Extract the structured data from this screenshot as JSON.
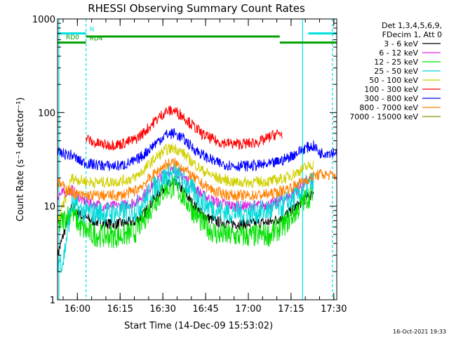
{
  "chart_data": {
    "type": "line",
    "title": "RHESSI Observing Summary Count Rates",
    "xlabel": "Start Time (14-Dec-09 15:53:02)",
    "ylabel": "Count Rate (s⁻¹ detector⁻¹)",
    "yscale": "log",
    "ylim": [
      1,
      1000
    ],
    "xlim_minutes": [
      0,
      98
    ],
    "x_ticks": [
      {
        "label": "16:00",
        "t": 6.97
      },
      {
        "label": "16:15",
        "t": 21.97
      },
      {
        "label": "16:30",
        "t": 36.97
      },
      {
        "label": "16:45",
        "t": 51.97
      },
      {
        "label": "17:00",
        "t": 66.97
      },
      {
        "label": "17:15",
        "t": 81.97
      },
      {
        "label": "17:30",
        "t": 96.97
      }
    ],
    "y_ticks": [
      {
        "label": "1",
        "v": 1
      },
      {
        "label": "10",
        "v": 10
      },
      {
        "label": "100",
        "v": 100
      },
      {
        "label": "1000",
        "v": 1000
      }
    ],
    "legend_header": [
      "Det 1,3,4,5,6,9,",
      "FDecim 1, Att 0"
    ],
    "legend_placement": "top-right",
    "series": [
      {
        "name": "3 - 6 keV",
        "color": "#000000",
        "points": [
          [
            0,
            3
          ],
          [
            5,
            10
          ],
          [
            8,
            8
          ],
          [
            12,
            7
          ],
          [
            17,
            6.5
          ],
          [
            22,
            6.5
          ],
          [
            27,
            6.8
          ],
          [
            30,
            8
          ],
          [
            34,
            12
          ],
          [
            38,
            16.5
          ],
          [
            41,
            17.5
          ],
          [
            44,
            15
          ],
          [
            47,
            11
          ],
          [
            51,
            8
          ],
          [
            56,
            6.8
          ],
          [
            62,
            6.5
          ],
          [
            68,
            6.5
          ],
          [
            75,
            6.8
          ],
          [
            80,
            8
          ],
          [
            84,
            10
          ],
          [
            87,
            12
          ],
          [
            90,
            14
          ]
        ]
      },
      {
        "name": "6 - 12 keV",
        "color": "#e020e0",
        "points": [
          [
            0,
            13
          ],
          [
            5,
            15
          ],
          [
            8,
            12
          ],
          [
            12,
            10.5
          ],
          [
            17,
            10
          ],
          [
            22,
            10
          ],
          [
            27,
            11
          ],
          [
            30,
            13
          ],
          [
            34,
            18
          ],
          [
            38,
            23
          ],
          [
            41,
            24
          ],
          [
            44,
            21
          ],
          [
            47,
            17
          ],
          [
            51,
            13
          ],
          [
            56,
            11
          ],
          [
            62,
            10
          ],
          [
            68,
            10
          ],
          [
            75,
            10.5
          ],
          [
            80,
            12
          ],
          [
            84,
            15
          ],
          [
            87,
            18
          ],
          [
            90,
            20
          ]
        ]
      },
      {
        "name": "12 - 25 keV",
        "color": "#00e000",
        "points": [
          [
            0,
            6
          ],
          [
            5,
            9
          ],
          [
            8,
            6
          ],
          [
            12,
            5
          ],
          [
            17,
            4.8
          ],
          [
            22,
            4.8
          ],
          [
            27,
            5.2
          ],
          [
            30,
            7
          ],
          [
            34,
            11
          ],
          [
            38,
            15.5
          ],
          [
            41,
            16
          ],
          [
            44,
            13
          ],
          [
            47,
            9.5
          ],
          [
            51,
            6.5
          ],
          [
            56,
            5
          ],
          [
            62,
            4.8
          ],
          [
            68,
            4.8
          ],
          [
            75,
            5
          ],
          [
            80,
            6.5
          ],
          [
            84,
            9
          ],
          [
            87,
            12
          ],
          [
            90,
            14
          ]
        ]
      },
      {
        "name": "25 - 50 keV",
        "color": "#00d8d8",
        "points": [
          [
            0,
            2.6
          ],
          [
            2,
            2.6
          ],
          [
            5,
            11
          ],
          [
            8,
            9
          ],
          [
            12,
            8.5
          ],
          [
            17,
            8.5
          ],
          [
            22,
            8.5
          ],
          [
            27,
            9
          ],
          [
            30,
            11
          ],
          [
            34,
            16
          ],
          [
            38,
            21
          ],
          [
            41,
            22
          ],
          [
            44,
            19
          ],
          [
            47,
            15
          ],
          [
            51,
            11
          ],
          [
            56,
            9
          ],
          [
            62,
            8.5
          ],
          [
            68,
            8.5
          ],
          [
            75,
            9
          ],
          [
            80,
            10.5
          ],
          [
            84,
            13
          ],
          [
            87,
            16
          ],
          [
            90,
            18
          ]
        ]
      },
      {
        "name": "50 - 100 keV",
        "color": "#d0d000",
        "points": [
          [
            0,
            6.5
          ],
          [
            5,
            20
          ],
          [
            8,
            19
          ],
          [
            12,
            18
          ],
          [
            17,
            18
          ],
          [
            22,
            18.5
          ],
          [
            27,
            20
          ],
          [
            30,
            24
          ],
          [
            34,
            32
          ],
          [
            38,
            40
          ],
          [
            41,
            42
          ],
          [
            44,
            37
          ],
          [
            47,
            30
          ],
          [
            51,
            24
          ],
          [
            56,
            20
          ],
          [
            62,
            18
          ],
          [
            68,
            18
          ],
          [
            75,
            18.5
          ],
          [
            80,
            20
          ],
          [
            84,
            23
          ],
          [
            87,
            26
          ],
          [
            90,
            28
          ]
        ]
      },
      {
        "name": "100 - 300 keV",
        "color": "#ff0000",
        "points": [
          [
            10,
            55
          ],
          [
            12,
            48
          ],
          [
            17,
            45
          ],
          [
            22,
            46
          ],
          [
            27,
            51
          ],
          [
            30,
            60
          ],
          [
            34,
            80
          ],
          [
            38,
            103
          ],
          [
            41,
            105
          ],
          [
            44,
            92
          ],
          [
            47,
            75
          ],
          [
            51,
            58
          ],
          [
            56,
            49
          ],
          [
            62,
            46
          ],
          [
            68,
            47
          ],
          [
            72,
            50
          ],
          [
            76,
            58
          ],
          [
            79,
            60
          ]
        ]
      },
      {
        "name": "300 - 800 keV",
        "color": "#0000ff",
        "points": [
          [
            0,
            37
          ],
          [
            5,
            35
          ],
          [
            8,
            30
          ],
          [
            12,
            28
          ],
          [
            17,
            27
          ],
          [
            22,
            27
          ],
          [
            27,
            30
          ],
          [
            30,
            35
          ],
          [
            34,
            46
          ],
          [
            38,
            58
          ],
          [
            41,
            60
          ],
          [
            44,
            53
          ],
          [
            47,
            43
          ],
          [
            51,
            35
          ],
          [
            56,
            29
          ],
          [
            62,
            27
          ],
          [
            68,
            27
          ],
          [
            75,
            28
          ],
          [
            80,
            32
          ],
          [
            84,
            37
          ],
          [
            87,
            42
          ],
          [
            90,
            44
          ],
          [
            92,
            37
          ],
          [
            98,
            38
          ]
        ]
      },
      {
        "name": "800 - 7000 keV",
        "color": "#ff8000",
        "points": [
          [
            0,
            18
          ],
          [
            5,
            14
          ],
          [
            8,
            13
          ],
          [
            12,
            13
          ],
          [
            17,
            13
          ],
          [
            22,
            13
          ],
          [
            27,
            14.5
          ],
          [
            30,
            17
          ],
          [
            34,
            22
          ],
          [
            38,
            28
          ],
          [
            41,
            29
          ],
          [
            44,
            26
          ],
          [
            47,
            21
          ],
          [
            51,
            17
          ],
          [
            56,
            14
          ],
          [
            62,
            13
          ],
          [
            68,
            13
          ],
          [
            75,
            13.5
          ],
          [
            80,
            15
          ],
          [
            84,
            17
          ],
          [
            87,
            19
          ],
          [
            90,
            21
          ],
          [
            92,
            22
          ],
          [
            98,
            21
          ]
        ]
      },
      {
        "name": "7000 - 15000 keV",
        "color": "#909000",
        "points": []
      }
    ],
    "state_bars": [
      {
        "label": "N",
        "color": "#00e0e0",
        "segments": [
          [
            0,
            10
          ],
          [
            88,
            98
          ]
        ],
        "level": 700
      },
      {
        "label": "RD0",
        "color": "#00a000",
        "segments": [
          [
            10,
            78
          ]
        ],
        "level": 650
      },
      {
        "label": "RD4",
        "color": "#00a000",
        "segments": [
          [
            0,
            10
          ],
          [
            78,
            98
          ]
        ],
        "level": 560
      }
    ],
    "vlines": [
      {
        "t": 0.5,
        "style": "solid",
        "color": "#00e0e0"
      },
      {
        "t": 10,
        "style": "dashed",
        "color": "#00e0e0"
      },
      {
        "t": 86,
        "style": "solid",
        "color": "#00e0e0"
      },
      {
        "t": 96.5,
        "style": "dashed",
        "color": "#00e0e0"
      }
    ],
    "footer_timestamp": "16-Oct-2021 19:33"
  }
}
